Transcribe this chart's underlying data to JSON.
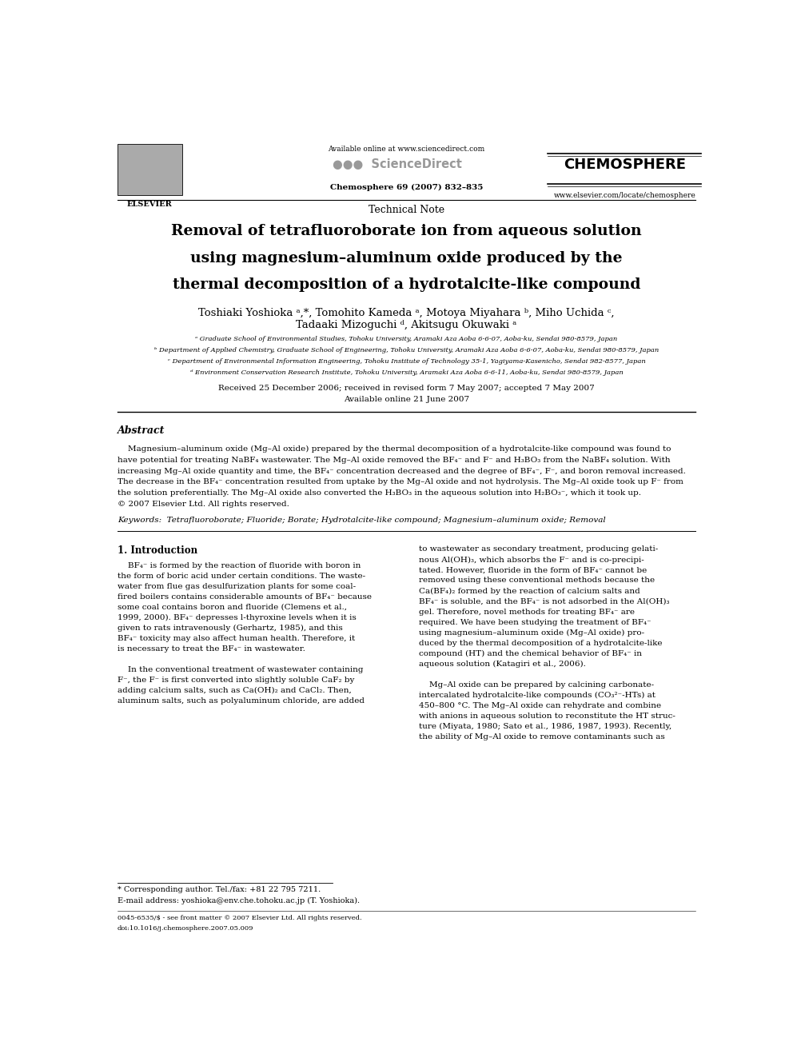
{
  "bg_color": "#ffffff",
  "page_width": 9.92,
  "page_height": 13.23,
  "header": {
    "available_online": "Available online at www.sciencedirect.com",
    "journal_name": "CHEMOSPHERE",
    "journal_info": "Chemosphere 69 (2007) 832–835",
    "website": "www.elsevier.com/locate/chemosphere"
  },
  "section_label": "Technical Note",
  "title_lines": [
    "Removal of tetrafluoroborate ion from aqueous solution",
    "using magnesium–aluminum oxide produced by the",
    "thermal decomposition of a hydrotalcite-like compound"
  ],
  "authors_line1": "Toshiaki Yoshioka ᵃ,*, Tomohito Kameda ᵃ, Motoya Miyahara ᵇ, Miho Uchida ᶜ,",
  "authors_line2": "Tadaaki Mizoguchi ᵈ, Akitsugu Okuwaki ᵃ",
  "affil_a": "ᵃ Graduate School of Environmental Studies, Tohoku University, Aramaki Aza Aoba 6-6-07, Aoba-ku, Sendai 980-8579, Japan",
  "affil_b": "ᵇ Department of Applied Chemistry, Graduate School of Engineering, Tohoku University, Aramaki Aza Aoba 6-6-07, Aoba-ku, Sendai 980-8579, Japan",
  "affil_c": "ᶜ Department of Environmental Information Engineering, Tohoku Institute of Technology 35-1, Yagiyama-Kasenicho, Sendai 982-8577, Japan",
  "affil_d": "ᵈ Environment Conservation Research Institute, Tohoku University, Aramaki Aza Aoba 6-6-11, Aoba-ku, Sendai 980-8579, Japan",
  "received": "Received 25 December 2006; received in revised form 7 May 2007; accepted 7 May 2007",
  "available_online2": "Available online 21 June 2007",
  "abstract_title": "Abstract",
  "abstract_text_lines": [
    "    Magnesium–aluminum oxide (Mg–Al oxide) prepared by the thermal decomposition of a hydrotalcite-like compound was found to",
    "have potential for treating NaBF₄ wastewater. The Mg–Al oxide removed the BF₄⁻ and F⁻ and H₃BO₃ from the NaBF₄ solution. With",
    "increasing Mg–Al oxide quantity and time, the BF₄⁻ concentration decreased and the degree of BF₄⁻, F⁻, and boron removal increased.",
    "The decrease in the BF₄⁻ concentration resulted from uptake by the Mg–Al oxide and not hydrolysis. The Mg–Al oxide took up F⁻ from",
    "the solution preferentially. The Mg–Al oxide also converted the H₃BO₃ in the aqueous solution into H₂BO₃⁻, which it took up.",
    "© 2007 Elsevier Ltd. All rights reserved."
  ],
  "keywords": "Keywords:  Tetrafluoroborate; Fluoride; Borate; Hydrotalcite-like compound; Magnesium–aluminum oxide; Removal",
  "section1_title": "1. Introduction",
  "col1_lines": [
    "    BF₄⁻ is formed by the reaction of fluoride with boron in",
    "the form of boric acid under certain conditions. The waste-",
    "water from flue gas desulfurization plants for some coal-",
    "fired boilers contains considerable amounts of BF₄⁻ because",
    "some coal contains boron and fluoride (Clemens et al.,",
    "1999, 2000). BF₄⁻ depresses l-thyroxine levels when it is",
    "given to rats intravenously (Gerhartz, 1985), and this",
    "BF₄⁻ toxicity may also affect human health. Therefore, it",
    "is necessary to treat the BF₄⁻ in wastewater.",
    "",
    "    In the conventional treatment of wastewater containing",
    "F⁻, the F⁻ is first converted into slightly soluble CaF₂ by",
    "adding calcium salts, such as Ca(OH)₂ and CaCl₂. Then,",
    "aluminum salts, such as polyaluminum chloride, are added"
  ],
  "col2_lines": [
    "to wastewater as secondary treatment, producing gelati-",
    "nous Al(OH)₃, which absorbs the F⁻ and is co-precipi-",
    "tated. However, fluoride in the form of BF₄⁻ cannot be",
    "removed using these conventional methods because the",
    "Ca(BF₄)₂ formed by the reaction of calcium salts and",
    "BF₄⁻ is soluble, and the BF₄⁻ is not adsorbed in the Al(OH)₃",
    "gel. Therefore, novel methods for treating BF₄⁻ are",
    "required. We have been studying the treatment of BF₄⁻",
    "using magnesium–aluminum oxide (Mg–Al oxide) pro-",
    "duced by the thermal decomposition of a hydrotalcite-like",
    "compound (HT) and the chemical behavior of BF₄⁻ in",
    "aqueous solution (Katagiri et al., 2006).",
    "",
    "    Mg–Al oxide can be prepared by calcining carbonate-",
    "intercalated hydrotalcite-like compounds (CO₃²⁻-HTs) at",
    "450–800 °C. The Mg–Al oxide can rehydrate and combine",
    "with anions in aqueous solution to reconstitute the HT struc-",
    "ture (Miyata, 1980; Sato et al., 1986, 1987, 1993). Recently,",
    "the ability of Mg–Al oxide to remove contaminants such as"
  ],
  "footnote1": "* Corresponding author. Tel./fax: +81 22 795 7211.",
  "footnote2": "E-mail address: yoshioka@env.che.tohoku.ac.jp (T. Yoshioka).",
  "footer_line1": "0045-6535/$ - see front matter © 2007 Elsevier Ltd. All rights reserved.",
  "footer_line2": "doi:10.1016/j.chemosphere.2007.05.009"
}
